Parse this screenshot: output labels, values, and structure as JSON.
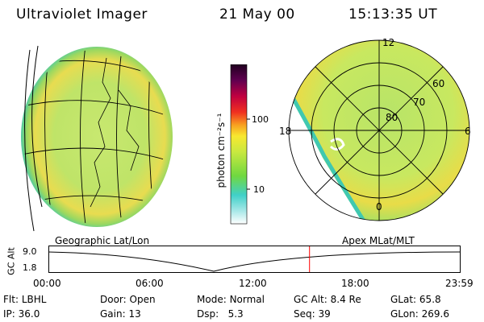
{
  "header": {
    "instrument": "Ultraviolet Imager",
    "date": "21 May 00",
    "time": "15:13:35 UT"
  },
  "panels": {
    "left_label": "Geographic Lat/Lon",
    "right_label": "Apex MLat/MLT"
  },
  "colorbar": {
    "unit_label": "photon cm⁻²s⁻¹",
    "ticks": [
      "100",
      "10"
    ]
  },
  "polar_plot": {
    "mlt_labels": {
      "top": "12",
      "left": "18",
      "right": "6",
      "bottom": "0"
    },
    "lat_labels": [
      "80",
      "70",
      "60"
    ]
  },
  "altitude_strip": {
    "axis_label": "GC Alt",
    "y_ticks": [
      "9.0",
      "1.8"
    ],
    "x_ticks": [
      "00:00",
      "06:00",
      "12:00",
      "18:00",
      "23:59"
    ],
    "current_time_fraction": 0.634
  },
  "status": {
    "row1": [
      {
        "label": "Flt:",
        "value": "LBHL"
      },
      {
        "label": "Door:",
        "value": "Open"
      },
      {
        "label": "Mode:",
        "value": "Normal"
      },
      {
        "label": "GC Alt:",
        "value": "8.4 Re"
      },
      {
        "label": "GLat:",
        "value": "65.8"
      }
    ],
    "row2": [
      {
        "label": "IP:",
        "value": "36.0"
      },
      {
        "label": "Gain:",
        "value": "13"
      },
      {
        "label": "Dsp:",
        "value": "5.3"
      },
      {
        "label": "Seq:",
        "value": "39"
      },
      {
        "label": "GLon:",
        "value": "269.6"
      }
    ]
  },
  "colors": {
    "grid": "#000000",
    "time_marker": "#ff0000",
    "aurora_core": "#b8e060",
    "aurora_bright": "#f0d84a",
    "aurora_edge": "#38c8b0"
  }
}
